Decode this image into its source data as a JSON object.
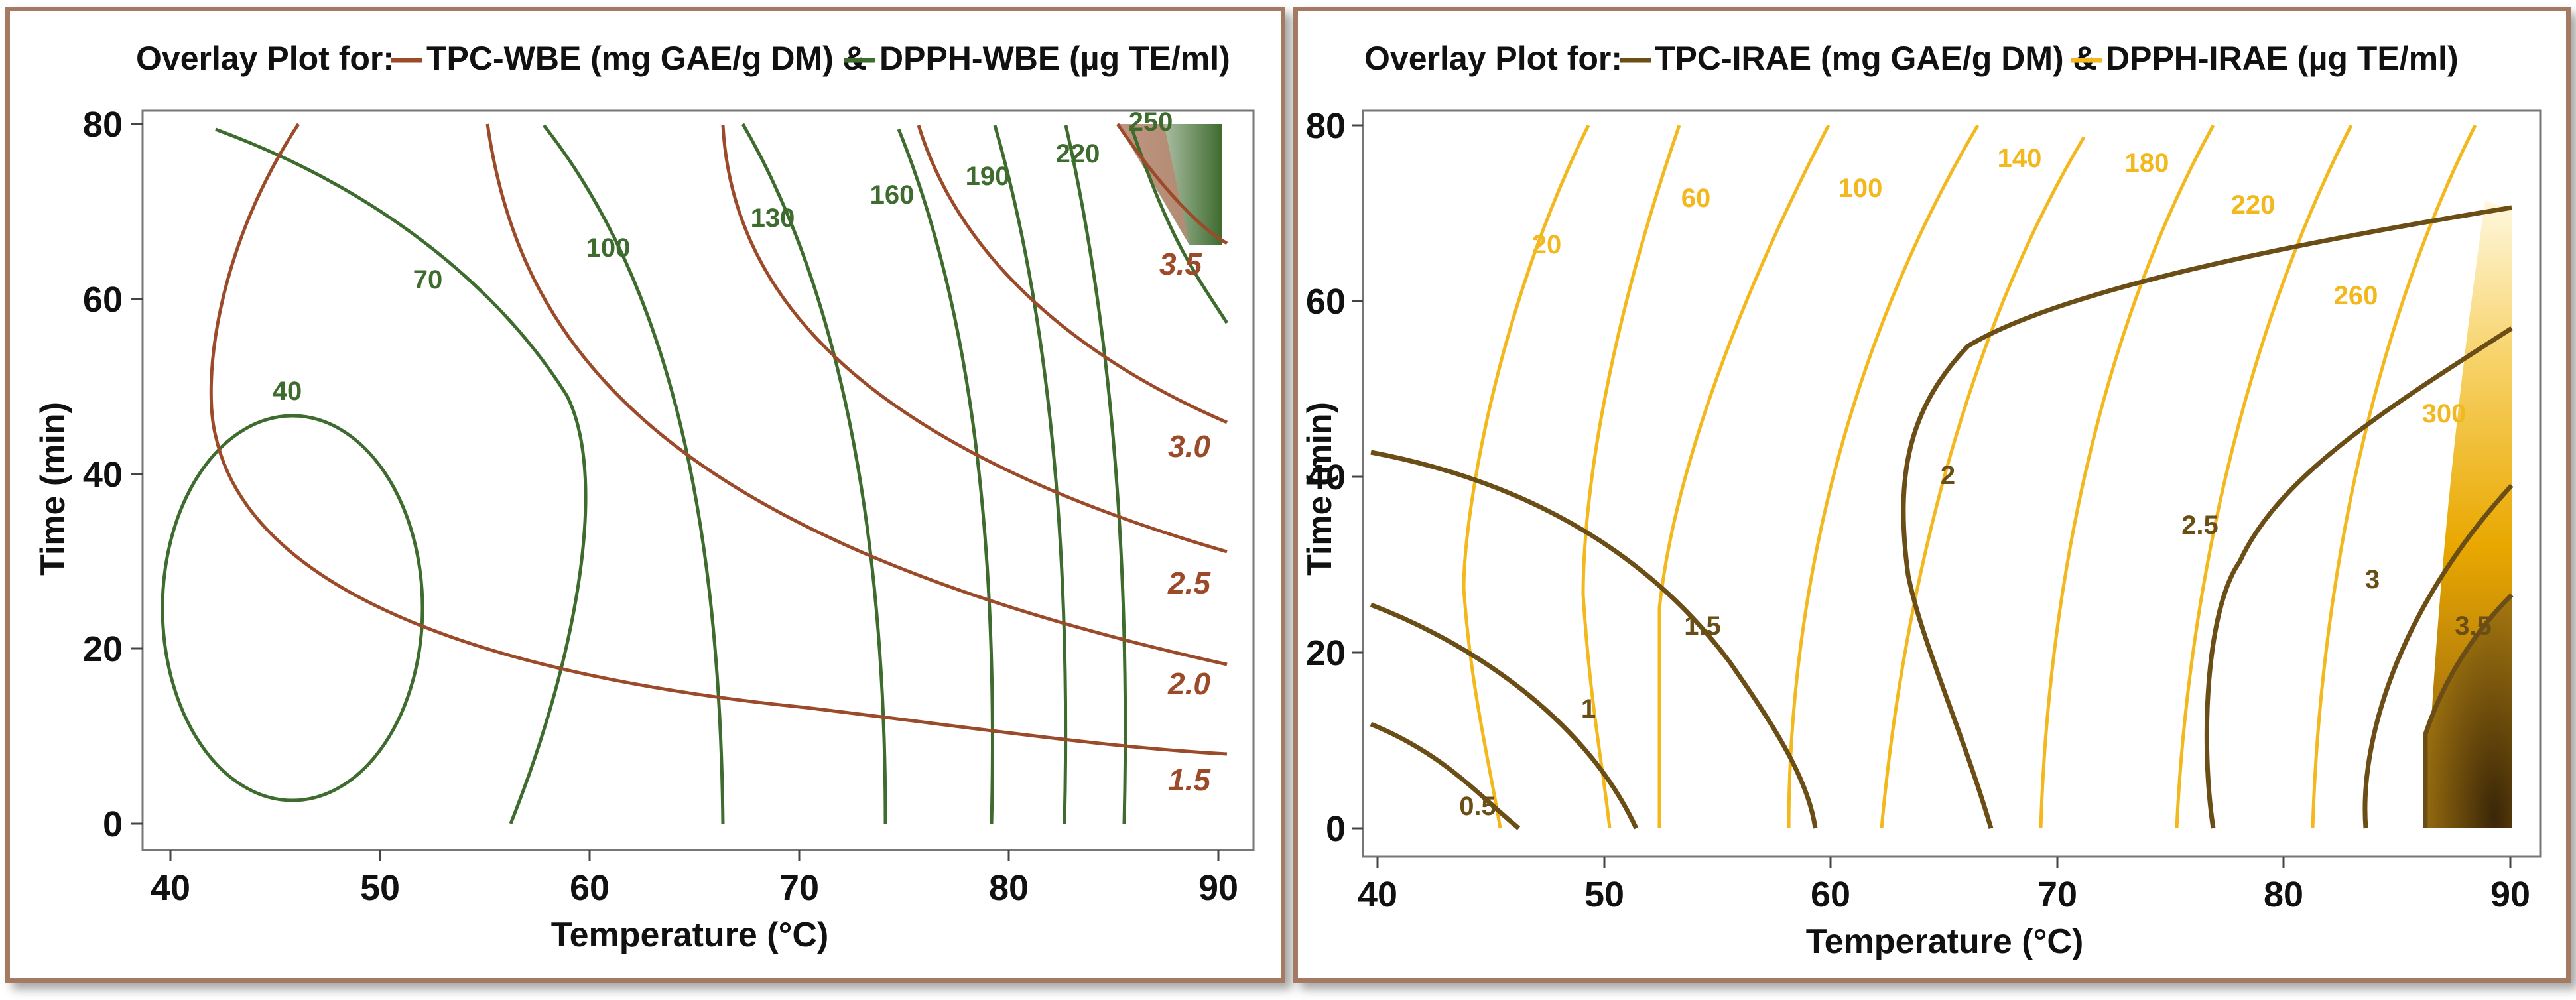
{
  "chart_data": [
    {
      "type": "contour",
      "title_prefix": "Overlay Plot for:",
      "legend": [
        {
          "name": "TPC-WBE (mg GAE/g DM) &",
          "color": "#9c4b2a"
        },
        {
          "name": "DPPH-WBE (µg TE/ml)",
          "color": "#3e6b2e"
        }
      ],
      "xlabel": "Temperature (°C)",
      "ylabel": "Time (min)",
      "xlim": [
        40,
        90
      ],
      "ylim": [
        0,
        80
      ],
      "xticks": [
        "40",
        "50",
        "60",
        "70",
        "80",
        "90"
      ],
      "yticks": [
        "0",
        "20",
        "40",
        "60",
        "80"
      ],
      "series": [
        {
          "name": "DPPH-WBE",
          "color": "#3e6b2e",
          "levels": [
            "40",
            "70",
            "100",
            "130",
            "160",
            "190",
            "220",
            "250"
          ]
        },
        {
          "name": "TPC-WBE",
          "color": "#9c4b2a",
          "levels": [
            "1.5",
            "2.0",
            "2.5",
            "3.0",
            "3.5"
          ]
        }
      ]
    },
    {
      "type": "contour",
      "title_prefix": "Overlay Plot for:",
      "legend": [
        {
          "name": "TPC-IRAE (mg GAE/g DM) &",
          "color": "#6b4e16"
        },
        {
          "name": "DPPH-IRAE (µg TE/ml)",
          "color": "#f2b81d"
        }
      ],
      "xlabel": "Temperature (°C)",
      "ylabel": "Time (min)",
      "xlim": [
        40,
        90
      ],
      "ylim": [
        0,
        80
      ],
      "xticks": [
        "40",
        "50",
        "60",
        "70",
        "80",
        "90"
      ],
      "yticks": [
        "0",
        "20",
        "40",
        "60",
        "80"
      ],
      "series": [
        {
          "name": "DPPH-IRAE",
          "color": "#f2b81d",
          "levels": [
            "20",
            "60",
            "100",
            "140",
            "180",
            "220",
            "260",
            "300"
          ]
        },
        {
          "name": "TPC-IRAE",
          "color": "#6b4e16",
          "levels": [
            "0.5",
            "1",
            "1.5",
            "2",
            "2.5",
            "3",
            "3.5"
          ]
        }
      ]
    }
  ]
}
